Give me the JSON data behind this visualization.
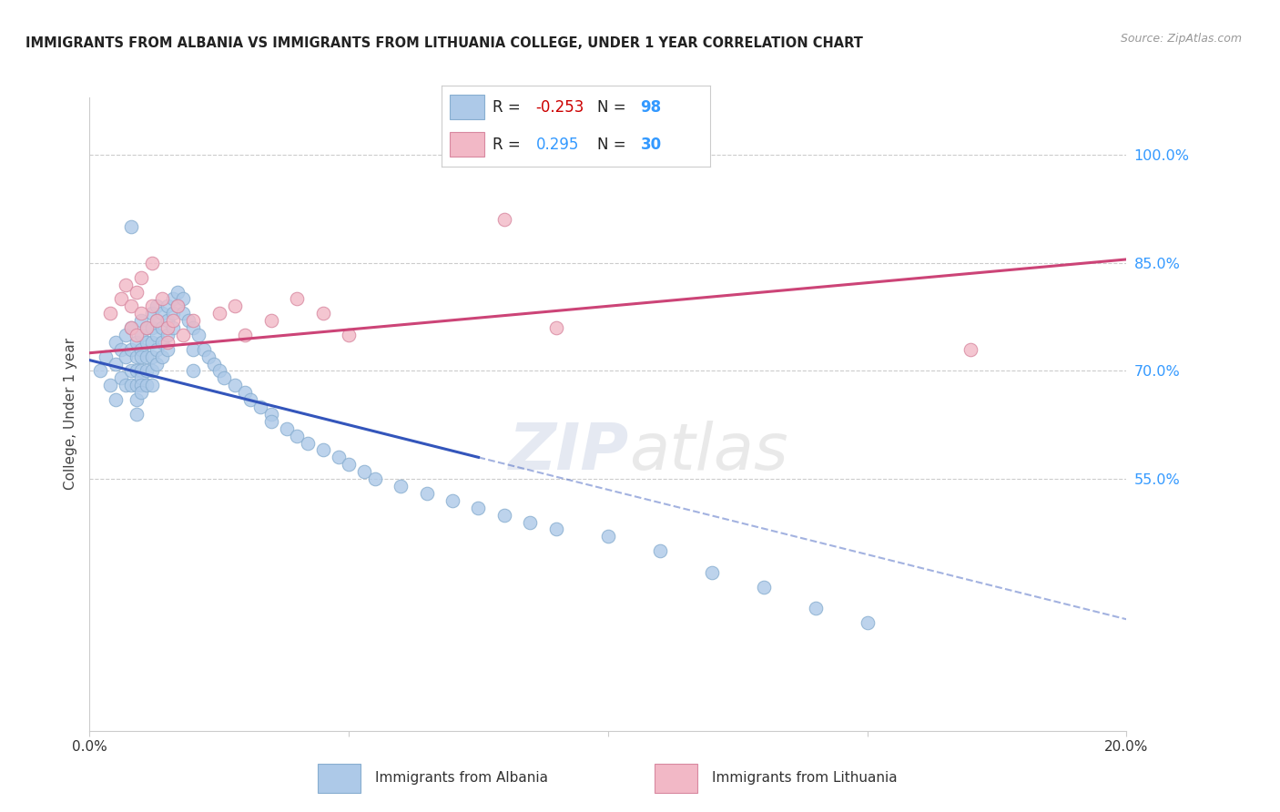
{
  "title": "IMMIGRANTS FROM ALBANIA VS IMMIGRANTS FROM LITHUANIA COLLEGE, UNDER 1 YEAR CORRELATION CHART",
  "source": "Source: ZipAtlas.com",
  "ylabel": "College, Under 1 year",
  "xlim": [
    0.0,
    20.0
  ],
  "ylim": [
    20.0,
    108.0
  ],
  "yticks": [
    55.0,
    70.0,
    85.0,
    100.0
  ],
  "ytick_labels": [
    "55.0%",
    "70.0%",
    "85.0%",
    "100.0%"
  ],
  "background_color": "#ffffff",
  "grid_color": "#cccccc",
  "albania_color": "#adc9e8",
  "albania_edge_color": "#88aed0",
  "lithuania_color": "#f2b8c6",
  "lithuania_edge_color": "#d888a0",
  "albania_R": -0.253,
  "albania_N": 98,
  "lithuania_R": 0.295,
  "lithuania_N": 30,
  "albania_line_color": "#3355bb",
  "lithuania_line_color": "#cc4477",
  "albania_scatter_x": [
    0.2,
    0.3,
    0.4,
    0.5,
    0.5,
    0.5,
    0.6,
    0.6,
    0.7,
    0.7,
    0.7,
    0.8,
    0.8,
    0.8,
    0.8,
    0.8,
    0.9,
    0.9,
    0.9,
    0.9,
    0.9,
    0.9,
    1.0,
    1.0,
    1.0,
    1.0,
    1.0,
    1.0,
    1.0,
    1.0,
    1.1,
    1.1,
    1.1,
    1.1,
    1.1,
    1.2,
    1.2,
    1.2,
    1.2,
    1.2,
    1.2,
    1.3,
    1.3,
    1.3,
    1.3,
    1.3,
    1.4,
    1.4,
    1.4,
    1.4,
    1.5,
    1.5,
    1.5,
    1.5,
    1.6,
    1.6,
    1.6,
    1.7,
    1.7,
    1.8,
    1.8,
    1.9,
    2.0,
    2.0,
    2.0,
    2.1,
    2.2,
    2.3,
    2.4,
    2.5,
    2.6,
    2.8,
    3.0,
    3.1,
    3.3,
    3.5,
    3.5,
    3.8,
    4.0,
    4.2,
    4.5,
    4.8,
    5.0,
    5.3,
    5.5,
    6.0,
    6.5,
    7.0,
    7.5,
    8.0,
    8.5,
    9.0,
    10.0,
    11.0,
    12.0,
    13.0,
    14.0,
    15.0
  ],
  "albania_scatter_y": [
    70,
    72,
    68,
    66,
    71,
    74,
    69,
    73,
    75,
    72,
    68,
    76,
    73,
    70,
    68,
    90,
    74,
    72,
    70,
    68,
    66,
    64,
    77,
    75,
    73,
    72,
    70,
    69,
    68,
    67,
    76,
    74,
    72,
    70,
    68,
    78,
    76,
    74,
    72,
    70,
    68,
    79,
    77,
    75,
    73,
    71,
    78,
    76,
    74,
    72,
    79,
    77,
    75,
    73,
    80,
    78,
    76,
    81,
    79,
    80,
    78,
    77,
    76,
    73,
    70,
    75,
    73,
    72,
    71,
    70,
    69,
    68,
    67,
    66,
    65,
    64,
    63,
    62,
    61,
    60,
    59,
    58,
    57,
    56,
    55,
    54,
    53,
    52,
    51,
    50,
    49,
    48,
    47,
    45,
    42,
    40,
    37,
    35
  ],
  "lithuania_scatter_x": [
    0.4,
    0.6,
    0.7,
    0.8,
    0.8,
    0.9,
    0.9,
    1.0,
    1.0,
    1.1,
    1.2,
    1.2,
    1.3,
    1.4,
    1.5,
    1.5,
    1.6,
    1.7,
    1.8,
    2.0,
    2.5,
    2.8,
    3.0,
    3.5,
    4.0,
    4.5,
    5.0,
    8.0,
    9.0,
    17.0
  ],
  "lithuania_scatter_y": [
    78,
    80,
    82,
    79,
    76,
    81,
    75,
    78,
    83,
    76,
    85,
    79,
    77,
    80,
    76,
    74,
    77,
    79,
    75,
    77,
    78,
    79,
    75,
    77,
    80,
    78,
    75,
    91,
    76,
    73
  ],
  "alb_line_x0": 0.0,
  "alb_line_y0": 71.5,
  "alb_line_x1": 7.5,
  "alb_line_y1": 58.0,
  "alb_dash_x0": 7.5,
  "alb_dash_y0": 58.0,
  "alb_dash_x1": 20.0,
  "alb_dash_y1": 35.5,
  "lit_line_x0": 0.0,
  "lit_line_y0": 72.5,
  "lit_line_x1": 20.0,
  "lit_line_y1": 85.5
}
